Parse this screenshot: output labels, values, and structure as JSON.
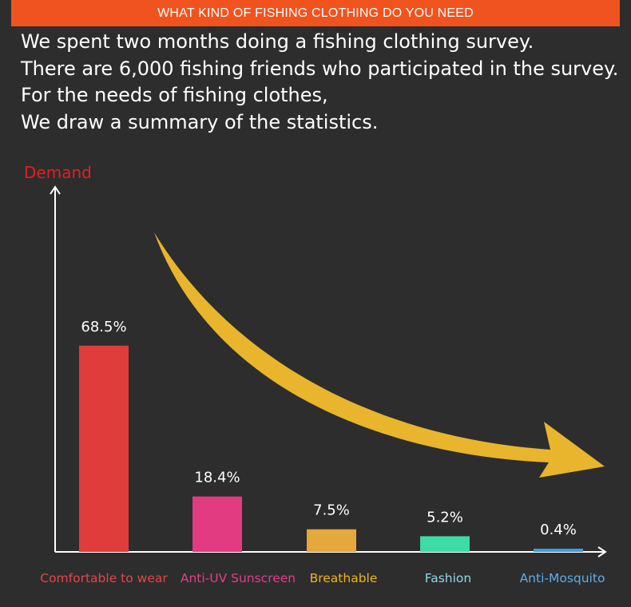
{
  "banner": {
    "title": "WHAT KIND OF FISHING CLOTHING DO YOU NEED"
  },
  "intro": {
    "lines": [
      "We spent two months doing a fishing clothing survey.",
      "There are 6,000 fishing friends who participated in the survey.",
      "For the needs of fishing clothes,",
      "We draw a summary of the statistics."
    ]
  },
  "colors": {
    "background": "#2d2d2d",
    "banner": "#f0531e",
    "axis": "#ffffff",
    "arrow": "#e8b52c"
  },
  "chart_data": {
    "type": "bar",
    "ylabel": "Demand",
    "xlabel": "",
    "ylim": [
      0,
      100
    ],
    "grid": false,
    "categories": [
      "Comfortable to wear",
      "Anti-UV Sunscreen",
      "Breathable",
      "Fashion",
      "Anti-Mosquito"
    ],
    "values": [
      68.5,
      18.4,
      7.5,
      5.2,
      0.4
    ],
    "data_labels": [
      "68.5%",
      "18.4%",
      "7.5%",
      "5.2%",
      "0.4%"
    ],
    "bar_colors": [
      "#e03c3c",
      "#e23b82",
      "#e4a83c",
      "#3ddba5",
      "#3b9ee0"
    ],
    "category_label_colors": [
      "#e64646",
      "#e63c8c",
      "#f0b41e",
      "#8fd8e6",
      "#5aaff0"
    ],
    "ylabel_color": "#e61e1e",
    "decoration": "descending-arrow"
  }
}
